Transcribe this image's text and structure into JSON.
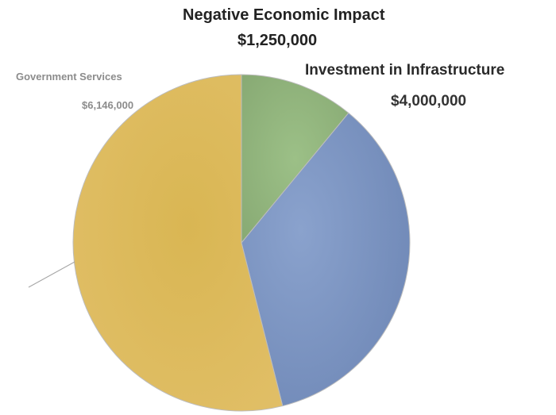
{
  "chart_data": {
    "type": "pie",
    "title": "",
    "slices": [
      {
        "label": "Negative Economic Impact",
        "value": 1250000,
        "display": "$1,250,000",
        "color": "#92b37c"
      },
      {
        "label": "Investment in Infrastructure",
        "value": 4000000,
        "display": "$4,000,000",
        "color": "#7a93c0"
      },
      {
        "label": "Government Services",
        "value": 6146000,
        "display": "$6,146,000",
        "color": "#d8b65a"
      }
    ],
    "legend": "none",
    "data_labels": true
  },
  "colors": {
    "leader_line": "#a6a6a6",
    "slice_border": "#bdbdbd"
  }
}
